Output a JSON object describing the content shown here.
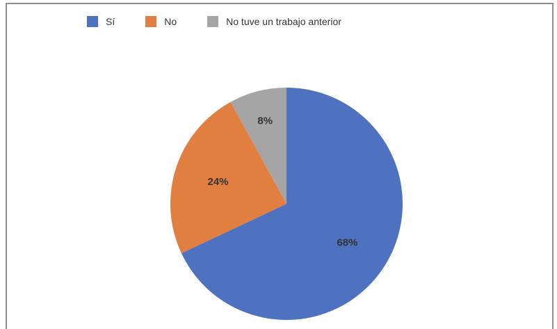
{
  "chart_data": {
    "type": "pie",
    "categories": [
      "Sí",
      "No",
      "No tuve un trabajo anterior"
    ],
    "values": [
      68,
      24,
      8
    ],
    "data_labels": [
      "68%",
      "24%",
      "8%"
    ],
    "colors": [
      "#4f72c0",
      "#e07f3f",
      "#a5a5a5"
    ],
    "legend_position": "top-left",
    "start": "12 o'clock, clockwise"
  }
}
